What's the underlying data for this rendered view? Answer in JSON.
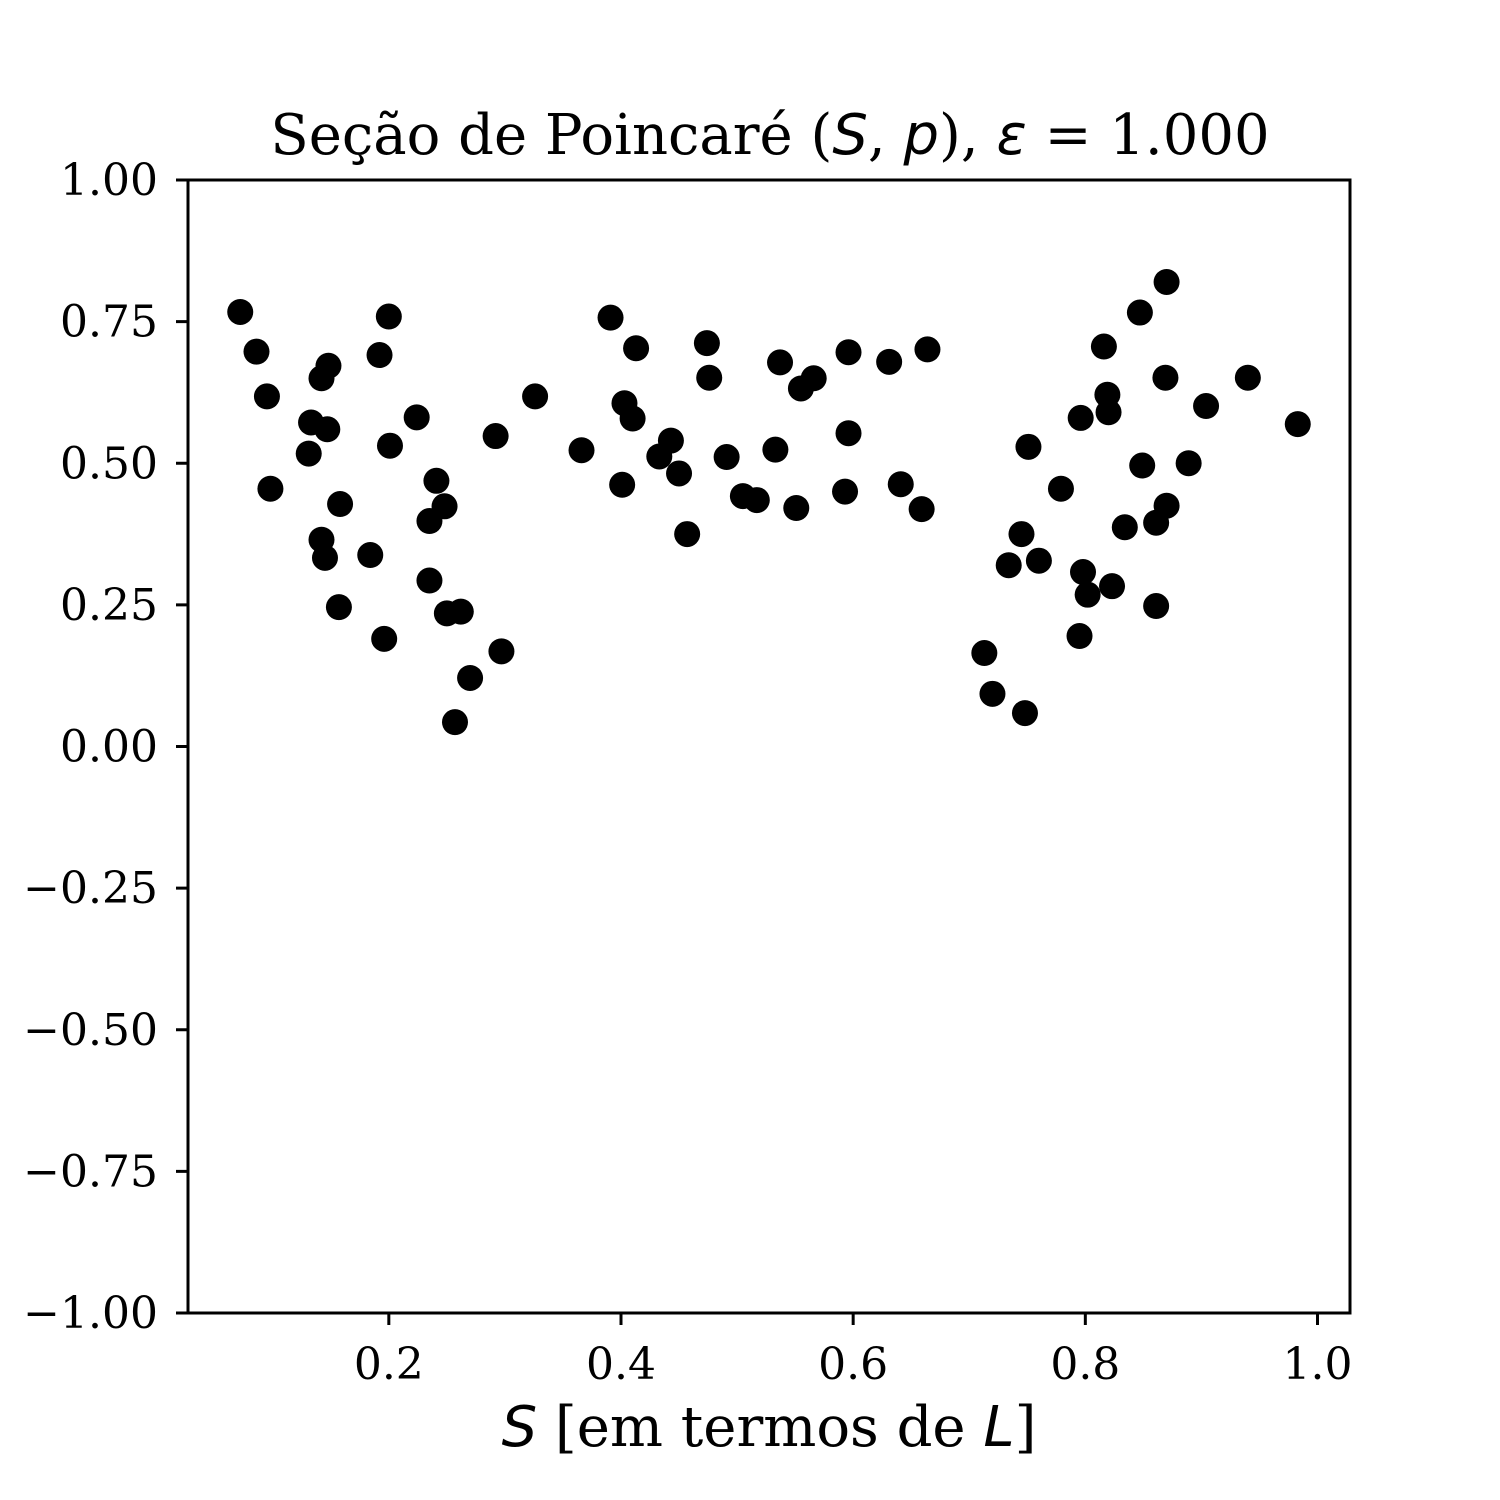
{
  "chart_data": {
    "type": "scatter",
    "title": "Seção de Poincaré (S, p), ε = 1.000",
    "title_parts": {
      "prefix": "Seção de Poincaré (",
      "var1": "S",
      "sep": ", ",
      "var2": "p",
      "mid": "), ",
      "var3": "ε",
      "suffix": " = 1.000"
    },
    "xlabel": "S [em termos de L]",
    "xlabel_parts": {
      "var1": "S",
      "mid": " [em termos de ",
      "var2": "L",
      "suffix": "]"
    },
    "ylabel": "",
    "xlim": [
      0.027,
      1.028
    ],
    "ylim": [
      -1.0,
      1.0
    ],
    "x_ticks": [
      0.2,
      0.4,
      0.6,
      0.8,
      1.0
    ],
    "x_tick_labels": [
      "0.2",
      "0.4",
      "0.6",
      "0.8",
      "1.0"
    ],
    "y_ticks": [
      1.0,
      0.75,
      0.5,
      0.25,
      0.0,
      -0.25,
      -0.5,
      -0.75,
      -1.0
    ],
    "y_tick_labels": [
      "1.00",
      "0.75",
      "0.50",
      "0.25",
      "0.00",
      "−0.25",
      "−0.50",
      "−0.75",
      "−1.00"
    ],
    "grid": false,
    "marker_color": "#000000",
    "series": [
      {
        "points": [
          [
            0.072,
            0.767
          ],
          [
            0.086,
            0.697
          ],
          [
            0.095,
            0.618
          ],
          [
            0.098,
            0.455
          ],
          [
            0.131,
            0.517
          ],
          [
            0.133,
            0.572
          ],
          [
            0.142,
            0.65
          ],
          [
            0.148,
            0.672
          ],
          [
            0.147,
            0.56
          ],
          [
            0.142,
            0.365
          ],
          [
            0.145,
            0.333
          ],
          [
            0.158,
            0.428
          ],
          [
            0.157,
            0.246
          ],
          [
            0.192,
            0.691
          ],
          [
            0.2,
            0.759
          ],
          [
            0.201,
            0.531
          ],
          [
            0.184,
            0.338
          ],
          [
            0.196,
            0.19
          ],
          [
            0.224,
            0.581
          ],
          [
            0.235,
            0.398
          ],
          [
            0.241,
            0.469
          ],
          [
            0.248,
            0.424
          ],
          [
            0.235,
            0.293
          ],
          [
            0.25,
            0.235
          ],
          [
            0.262,
            0.238
          ],
          [
            0.257,
            0.043
          ],
          [
            0.27,
            0.121
          ],
          [
            0.292,
            0.548
          ],
          [
            0.297,
            0.168
          ],
          [
            0.326,
            0.618
          ],
          [
            0.366,
            0.523
          ],
          [
            0.391,
            0.757
          ],
          [
            0.401,
            0.462
          ],
          [
            0.403,
            0.606
          ],
          [
            0.41,
            0.579
          ],
          [
            0.413,
            0.703
          ],
          [
            0.433,
            0.512
          ],
          [
            0.443,
            0.54
          ],
          [
            0.45,
            0.482
          ],
          [
            0.457,
            0.375
          ],
          [
            0.474,
            0.712
          ],
          [
            0.476,
            0.651
          ],
          [
            0.491,
            0.511
          ],
          [
            0.505,
            0.442
          ],
          [
            0.517,
            0.435
          ],
          [
            0.533,
            0.524
          ],
          [
            0.537,
            0.678
          ],
          [
            0.551,
            0.421
          ],
          [
            0.555,
            0.632
          ],
          [
            0.566,
            0.65
          ],
          [
            0.593,
            0.45
          ],
          [
            0.596,
            0.553
          ],
          [
            0.596,
            0.696
          ],
          [
            0.631,
            0.679
          ],
          [
            0.641,
            0.463
          ],
          [
            0.659,
            0.419
          ],
          [
            0.664,
            0.701
          ],
          [
            0.713,
            0.165
          ],
          [
            0.72,
            0.093
          ],
          [
            0.734,
            0.32
          ],
          [
            0.745,
            0.375
          ],
          [
            0.748,
            0.059
          ],
          [
            0.751,
            0.529
          ],
          [
            0.76,
            0.328
          ],
          [
            0.779,
            0.455
          ],
          [
            0.795,
            0.195
          ],
          [
            0.796,
            0.58
          ],
          [
            0.798,
            0.308
          ],
          [
            0.802,
            0.268
          ],
          [
            0.816,
            0.706
          ],
          [
            0.819,
            0.621
          ],
          [
            0.82,
            0.59
          ],
          [
            0.823,
            0.283
          ],
          [
            0.834,
            0.387
          ],
          [
            0.847,
            0.766
          ],
          [
            0.849,
            0.496
          ],
          [
            0.861,
            0.395
          ],
          [
            0.861,
            0.248
          ],
          [
            0.869,
            0.651
          ],
          [
            0.87,
            0.425
          ],
          [
            0.87,
            0.82
          ],
          [
            0.889,
            0.5
          ],
          [
            0.904,
            0.601
          ],
          [
            0.94,
            0.651
          ],
          [
            0.983,
            0.569
          ]
        ]
      }
    ]
  }
}
